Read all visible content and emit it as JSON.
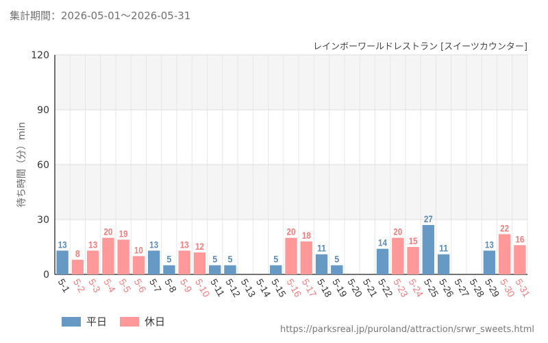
{
  "page": {
    "title": "集計期間：2026-05-01～2026-05-31",
    "source_url": "https://parksreal.jp/puroland/attraction/srwr_sweets.html"
  },
  "chart_data": {
    "type": "bar",
    "title": "レインボーワールドレストラン [スイーツカウンター]",
    "ylabel": "待ち時間（分）min",
    "xlabel": "",
    "ylim": [
      0,
      120
    ],
    "yticks": [
      0,
      30,
      60,
      90,
      120
    ],
    "grid": true,
    "legend": "bottom-left",
    "colors": {
      "weekday": "#6699c4",
      "holiday": "#ff9999",
      "weekday_text": "#5a8bb8",
      "holiday_text": "#f27c7c"
    },
    "series": [
      {
        "name": "平日",
        "key": "weekday"
      },
      {
        "name": "休日",
        "key": "holiday"
      }
    ],
    "categories": [
      "5-1",
      "5-2",
      "5-3",
      "5-4",
      "5-5",
      "5-6",
      "5-7",
      "5-8",
      "5-9",
      "5-10",
      "5-11",
      "5-12",
      "5-13",
      "5-14",
      "5-15",
      "5-16",
      "5-17",
      "5-18",
      "5-19",
      "5-20",
      "5-21",
      "5-22",
      "5-23",
      "5-24",
      "5-25",
      "5-26",
      "5-27",
      "5-28",
      "5-29",
      "5-30",
      "5-31"
    ],
    "day_types": [
      "weekday",
      "holiday",
      "holiday",
      "holiday",
      "holiday",
      "holiday",
      "weekday",
      "weekday",
      "holiday",
      "holiday",
      "weekday",
      "weekday",
      "weekday",
      "weekday",
      "weekday",
      "holiday",
      "holiday",
      "weekday",
      "weekday",
      "weekday",
      "weekday",
      "weekday",
      "holiday",
      "holiday",
      "weekday",
      "weekday",
      "weekday",
      "weekday",
      "weekday",
      "holiday",
      "holiday"
    ],
    "values": [
      13,
      8,
      13,
      20,
      19,
      10,
      13,
      5,
      13,
      12,
      5,
      5,
      null,
      null,
      5,
      20,
      18,
      11,
      5,
      null,
      null,
      14,
      20,
      15,
      27,
      11,
      null,
      null,
      13,
      22,
      16
    ]
  }
}
